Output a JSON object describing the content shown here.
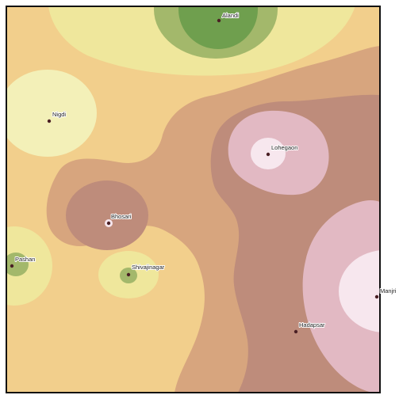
{
  "map": {
    "colors": {
      "zone_beige": "#f2cf8c",
      "zone_tan": "#d7a57e",
      "zone_brown": "#be8c7b",
      "zone_light_yellow": "#efe79c",
      "zone_pale_yellow": "#f3f0b8",
      "zone_light_green": "#a3b86b",
      "zone_dark_green": "#6f9f4e",
      "zone_pink": "#e2b9c3",
      "zone_pale_pink": "#f7e7ee",
      "marker": "#4a1f24",
      "frame": "#111111"
    },
    "places": [
      {
        "name": "Alandi"
      },
      {
        "name": "Nigdi"
      },
      {
        "name": "Lohegaon"
      },
      {
        "name": "Bhosari"
      },
      {
        "name": "Pashan"
      },
      {
        "name": "Shivajinagar"
      },
      {
        "name": "Manjri"
      },
      {
        "name": "Hadapsar"
      }
    ]
  }
}
